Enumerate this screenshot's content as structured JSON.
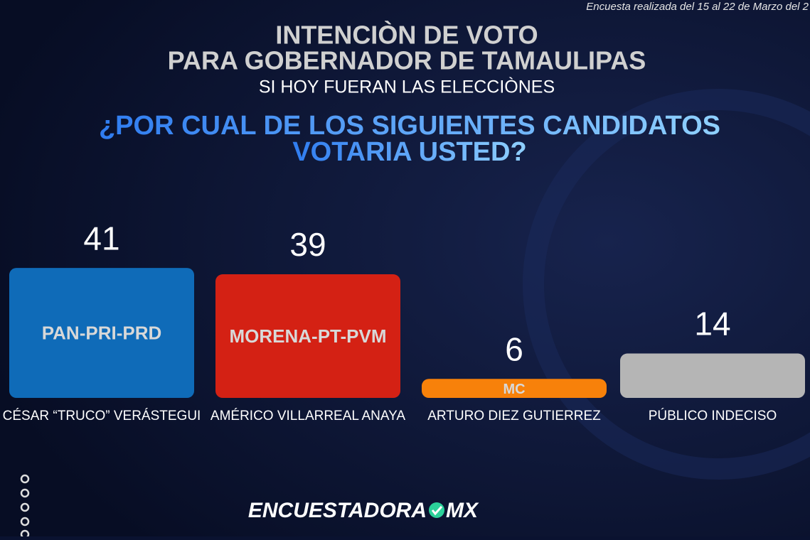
{
  "header": {
    "note": "Encuesta realizada del 15 al 22 de Marzo del 2",
    "title_lines": [
      "INTENCIÒN DE VOTO",
      "PARA GOBERNADOR DE TAMAULIPAS"
    ],
    "subtitle": "SI HOY FUERAN LAS ELECCIÒNES",
    "question_lines": [
      "¿POR CUAL DE LOS SIGUIENTES CANDIDATOS",
      "VOTARIA USTED?"
    ]
  },
  "chart_data": {
    "type": "bar",
    "categories": [
      "CÉSAR “TRUCO” VERÁSTEGUI",
      "AMÉRICO VILLARREAL ANAYA",
      "ARTURO DIEZ GUTIERREZ",
      "PÚBLICO INDECISO"
    ],
    "bar_labels": [
      "PAN-PRI-PRD",
      "MORENA-PT-PVM",
      "MC",
      null
    ],
    "values": [
      41,
      39,
      6,
      14
    ],
    "colors": [
      "#0f6bb8",
      "#d42114",
      "#f7810a",
      "#b5b5b5"
    ]
  },
  "footer": {
    "brand": "ENCUESTADORA",
    "brand_suffix": "MX"
  }
}
